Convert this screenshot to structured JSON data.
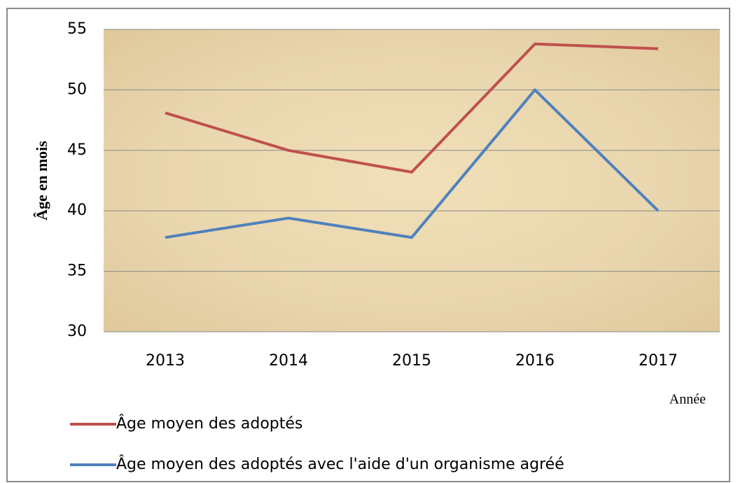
{
  "chart_data": {
    "type": "line",
    "y_label": "Âge en mois",
    "x_label": "Année",
    "categories": [
      "2013",
      "2014",
      "2015",
      "2016",
      "2017"
    ],
    "series": [
      {
        "name": "Âge moyen des adoptés",
        "color": "#c0504d",
        "values": [
          48.1,
          45.0,
          43.2,
          53.8,
          53.4
        ]
      },
      {
        "name": "Âge moyen des adoptés avec l'aide d'un organisme agréé",
        "color": "#4f81bd",
        "values": [
          37.8,
          39.4,
          37.8,
          50.0,
          40.0
        ]
      }
    ],
    "ylim": [
      30,
      55
    ],
    "yticks": [
      30,
      35,
      40,
      45,
      50,
      55
    ],
    "grid": true
  }
}
